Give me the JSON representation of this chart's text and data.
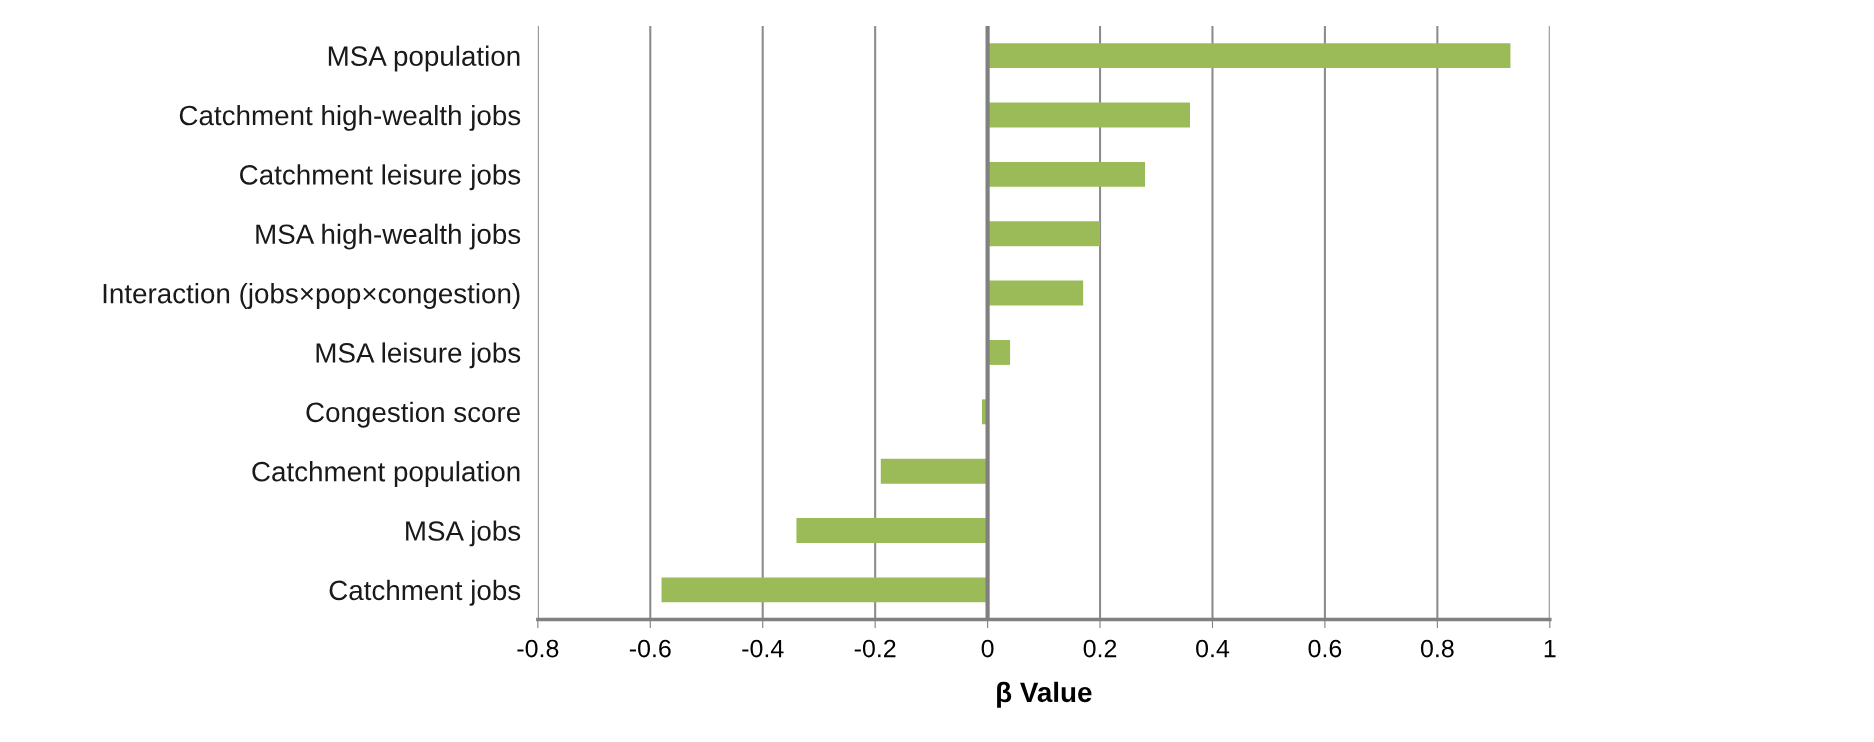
{
  "chart_data": {
    "type": "bar",
    "orientation": "horizontal",
    "xlabel": "β Value",
    "categories": [
      "MSA population",
      "Catchment high-wealth jobs",
      "Catchment leisure jobs",
      "MSA high-wealth jobs",
      "Interaction (jobs×pop×congestion)",
      "MSA leisure jobs",
      "Congestion score",
      "Catchment population",
      "MSA jobs",
      "Catchment jobs"
    ],
    "values": [
      0.93,
      0.36,
      0.28,
      0.2,
      0.17,
      0.04,
      -0.01,
      -0.19,
      -0.34,
      -0.58
    ],
    "color": "#9bbb59",
    "xlim": [
      -0.8,
      1
    ],
    "xticks": [
      -0.8,
      -0.6,
      -0.4,
      -0.2,
      0,
      0.2,
      0.4,
      0.6,
      0.8,
      1
    ],
    "grid": "x"
  }
}
